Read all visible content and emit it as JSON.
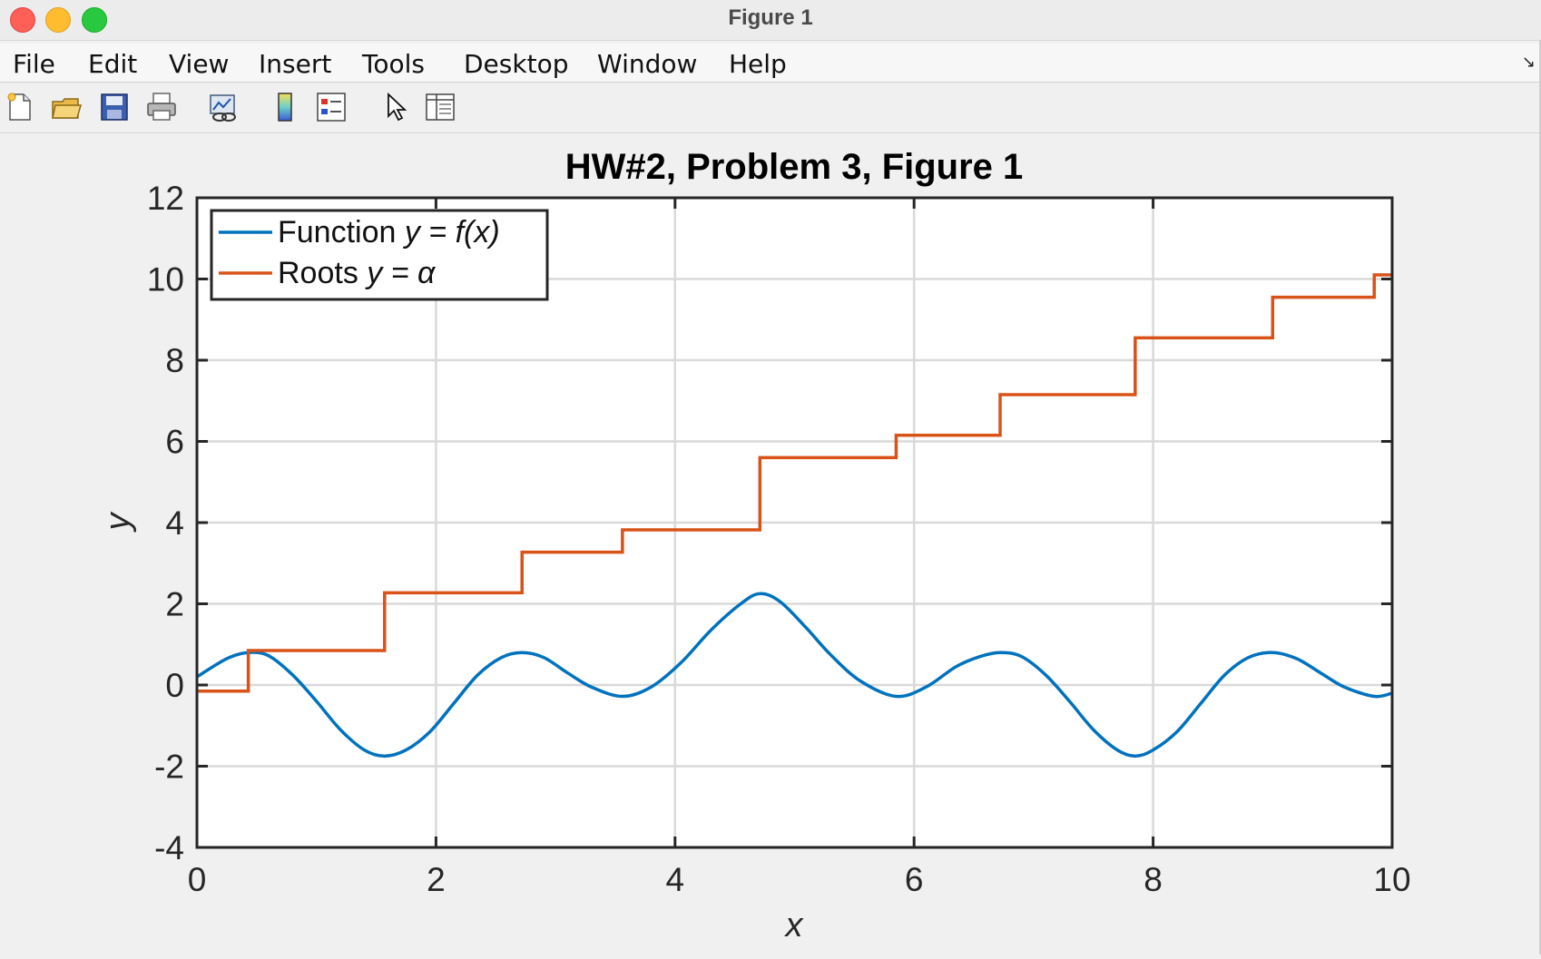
{
  "window": {
    "title": "Figure 1"
  },
  "menu": {
    "items": [
      "File",
      "Edit",
      "View",
      "Insert",
      "Tools",
      "Desktop",
      "Window",
      "Help"
    ]
  },
  "toolbar": {
    "icons": [
      "new-figure-icon",
      "open-file-icon",
      "save-icon",
      "print-icon",
      "link-plot-icon",
      "colorbar-icon",
      "legend-icon",
      "pointer-icon",
      "property-inspector-icon"
    ]
  },
  "chart_data": {
    "type": "line",
    "title": "HW#2, Problem 3, Figure 1",
    "xlabel": "x",
    "ylabel": "y",
    "xlim": [
      0,
      10
    ],
    "ylim": [
      -4,
      12
    ],
    "xticks": [
      0,
      2,
      4,
      6,
      8,
      10
    ],
    "yticks": [
      -4,
      -2,
      0,
      2,
      4,
      6,
      8,
      10,
      12
    ],
    "grid": true,
    "legend": {
      "placement": "top-left",
      "entries": [
        {
          "prefix": "Function ",
          "math": "y = f(x)"
        },
        {
          "prefix": "Roots ",
          "math": "y = α"
        }
      ]
    },
    "series": [
      {
        "name": "Function y = f(x)",
        "color": "#0072bd",
        "x": [
          0,
          0.25,
          0.43,
          0.6,
          0.8,
          1.0,
          1.2,
          1.4,
          1.57,
          1.75,
          1.95,
          2.15,
          2.35,
          2.55,
          2.72,
          2.9,
          3.1,
          3.3,
          3.56,
          3.8,
          4.05,
          4.3,
          4.55,
          4.71,
          4.88,
          5.1,
          5.3,
          5.55,
          5.85,
          6.1,
          6.35,
          6.55,
          6.72,
          6.9,
          7.1,
          7.3,
          7.5,
          7.7,
          7.85,
          8.0,
          8.2,
          8.4,
          8.6,
          8.8,
          9.0,
          9.2,
          9.4,
          9.6,
          9.85,
          10.0
        ],
        "y": [
          0.2,
          0.65,
          0.8,
          0.72,
          0.25,
          -0.4,
          -1.1,
          -1.6,
          -1.75,
          -1.6,
          -1.15,
          -0.45,
          0.25,
          0.68,
          0.8,
          0.68,
          0.3,
          -0.05,
          -0.28,
          -0.05,
          0.55,
          1.35,
          2.0,
          2.25,
          2.05,
          1.4,
          0.75,
          0.1,
          -0.28,
          -0.05,
          0.45,
          0.7,
          0.8,
          0.7,
          0.25,
          -0.4,
          -1.1,
          -1.6,
          -1.75,
          -1.6,
          -1.15,
          -0.45,
          0.25,
          0.68,
          0.8,
          0.65,
          0.3,
          -0.05,
          -0.28,
          -0.2
        ]
      },
      {
        "name": "Roots y = α",
        "color": "#d95319",
        "x": [
          0,
          0.43,
          0.43,
          1.57,
          1.57,
          2.72,
          2.72,
          3.56,
          3.56,
          4.71,
          4.71,
          5.85,
          5.85,
          6.72,
          6.72,
          7.85,
          7.85,
          9.0,
          9.0,
          9.85,
          9.85,
          10.0
        ],
        "y": [
          -0.15,
          -0.15,
          0.85,
          0.85,
          2.27,
          2.27,
          3.27,
          3.27,
          3.82,
          3.82,
          5.6,
          5.6,
          6.15,
          6.15,
          7.15,
          7.15,
          8.55,
          8.55,
          9.55,
          9.55,
          10.1,
          10.1
        ]
      }
    ]
  }
}
